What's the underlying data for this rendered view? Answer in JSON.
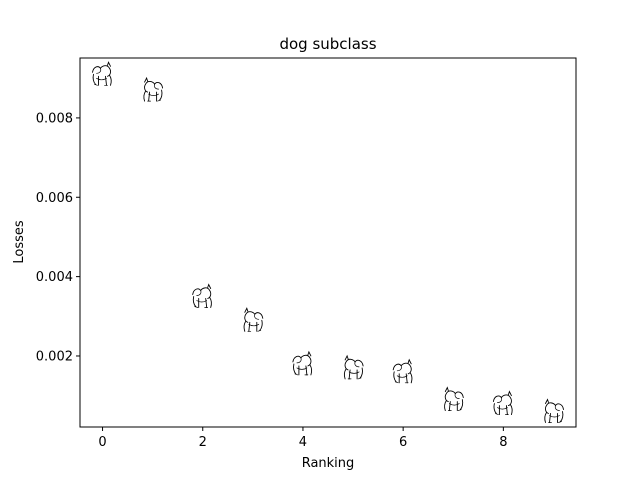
{
  "chart_data": {
    "type": "scatter",
    "title": "dog subclass",
    "xlabel": "Ranking",
    "ylabel": "Losses",
    "xlim": [
      -0.45,
      9.45
    ],
    "ylim": [
      0.00021,
      0.00951
    ],
    "xticks": [
      0,
      2,
      4,
      6,
      8
    ],
    "xtick_labels": [
      "0",
      "2",
      "4",
      "6",
      "8"
    ],
    "yticks": [
      0.002,
      0.004,
      0.006,
      0.008
    ],
    "ytick_labels": [
      "0.002",
      "0.004",
      "0.006",
      "0.008"
    ],
    "grid": false,
    "marker": "dog-sketch-thumbnail",
    "points": [
      {
        "x": 0,
        "y": 0.0091
      },
      {
        "x": 1,
        "y": 0.0087
      },
      {
        "x": 2,
        "y": 0.0035
      },
      {
        "x": 3,
        "y": 0.0029
      },
      {
        "x": 4,
        "y": 0.0018
      },
      {
        "x": 5,
        "y": 0.0017
      },
      {
        "x": 6,
        "y": 0.0016
      },
      {
        "x": 7,
        "y": 0.0009
      },
      {
        "x": 8,
        "y": 0.0008
      },
      {
        "x": 9,
        "y": 0.0006
      }
    ]
  }
}
